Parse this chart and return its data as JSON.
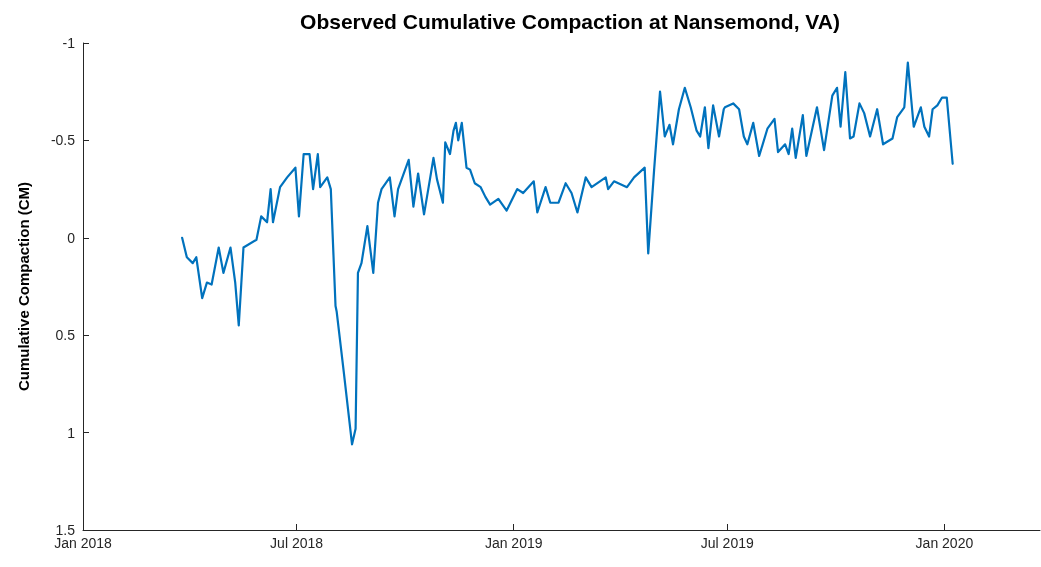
{
  "chart_data": {
    "type": "line",
    "title": "Observed Cumulative Compaction at Nansemond, VA)",
    "ylabel": "Cumulative Compaction (CM)",
    "x": [
      "2018-03-26",
      "2018-03-30",
      "2018-04-04",
      "2018-04-07",
      "2018-04-12",
      "2018-04-16",
      "2018-04-20",
      "2018-04-26",
      "2018-04-30",
      "2018-05-06",
      "2018-05-10",
      "2018-05-13",
      "2018-05-17",
      "2018-05-28",
      "2018-06-01",
      "2018-06-06",
      "2018-06-09",
      "2018-06-11",
      "2018-06-17",
      "2018-06-23",
      "2018-06-30",
      "2018-07-03",
      "2018-07-07",
      "2018-07-12",
      "2018-07-15",
      "2018-07-19",
      "2018-07-21",
      "2018-07-27",
      "2018-07-30",
      "2018-08-03",
      "2018-08-04",
      "2018-08-10",
      "2018-08-17",
      "2018-08-20",
      "2018-08-22",
      "2018-08-25",
      "2018-08-30",
      "2018-09-04",
      "2018-09-08",
      "2018-09-11",
      "2018-09-18",
      "2018-09-22",
      "2018-09-25",
      "2018-10-04",
      "2018-10-08",
      "2018-10-12",
      "2018-10-17",
      "2018-10-22",
      "2018-10-25",
      "2018-10-28",
      "2018-11-02",
      "2018-11-04",
      "2018-11-08",
      "2018-11-11",
      "2018-11-13",
      "2018-11-15",
      "2018-11-18",
      "2018-11-22",
      "2018-11-25",
      "2018-11-29",
      "2018-12-04",
      "2018-12-08",
      "2018-12-12",
      "2018-12-19",
      "2018-12-26",
      "2019-01-04",
      "2019-01-09",
      "2019-01-18",
      "2019-01-21",
      "2019-01-28",
      "2019-02-01",
      "2019-02-08",
      "2019-02-14",
      "2019-02-19",
      "2019-02-24",
      "2019-03-03",
      "2019-03-08",
      "2019-03-20",
      "2019-03-22",
      "2019-03-27",
      "2019-04-07",
      "2019-04-13",
      "2019-04-22",
      "2019-04-25",
      "2019-04-30",
      "2019-05-05",
      "2019-05-09",
      "2019-05-13",
      "2019-05-16",
      "2019-05-21",
      "2019-05-26",
      "2019-05-31",
      "2019-06-05",
      "2019-06-08",
      "2019-06-12",
      "2019-06-15",
      "2019-06-19",
      "2019-06-24",
      "2019-06-28",
      "2019-06-29",
      "2019-07-06",
      "2019-07-11",
      "2019-07-15",
      "2019-07-18",
      "2019-07-23",
      "2019-07-28",
      "2019-08-04",
      "2019-08-10",
      "2019-08-13",
      "2019-08-19",
      "2019-08-22",
      "2019-08-25",
      "2019-08-28",
      "2019-09-03",
      "2019-09-06",
      "2019-09-15",
      "2019-09-21",
      "2019-09-28",
      "2019-10-02",
      "2019-10-05",
      "2019-10-09",
      "2019-10-13",
      "2019-10-16",
      "2019-10-21",
      "2019-10-25",
      "2019-10-30",
      "2019-11-05",
      "2019-11-10",
      "2019-11-18",
      "2019-11-22",
      "2019-11-28",
      "2019-12-01",
      "2019-12-06",
      "2019-12-12",
      "2019-12-15",
      "2019-12-19",
      "2019-12-22",
      "2019-12-26",
      "2019-12-30",
      "2020-01-03",
      "2020-01-08"
    ],
    "series": [
      {
        "color": "#0072bd",
        "values": [
          0.0,
          0.1,
          0.13,
          0.1,
          0.31,
          0.23,
          0.24,
          0.05,
          0.18,
          0.05,
          0.23,
          0.45,
          0.05,
          0.01,
          -0.11,
          -0.08,
          -0.25,
          -0.08,
          -0.26,
          -0.31,
          -0.36,
          -0.11,
          -0.43,
          -0.43,
          -0.25,
          -0.43,
          -0.26,
          -0.31,
          -0.25,
          0.35,
          0.38,
          0.69,
          1.06,
          0.98,
          0.18,
          0.13,
          -0.06,
          0.18,
          -0.18,
          -0.25,
          -0.31,
          -0.11,
          -0.25,
          -0.4,
          -0.16,
          -0.33,
          -0.12,
          -0.3,
          -0.41,
          -0.3,
          -0.18,
          -0.49,
          -0.43,
          -0.55,
          -0.59,
          -0.5,
          -0.59,
          -0.36,
          -0.35,
          -0.28,
          -0.26,
          -0.21,
          -0.17,
          -0.2,
          -0.14,
          -0.25,
          -0.23,
          -0.29,
          -0.13,
          -0.26,
          -0.18,
          -0.18,
          -0.28,
          -0.23,
          -0.13,
          -0.31,
          -0.26,
          -0.31,
          -0.25,
          -0.29,
          -0.26,
          -0.31,
          -0.36,
          0.08,
          -0.35,
          -0.75,
          -0.52,
          -0.58,
          -0.48,
          -0.66,
          -0.77,
          -0.67,
          -0.55,
          -0.52,
          -0.67,
          -0.46,
          -0.68,
          -0.52,
          -0.66,
          -0.67,
          -0.69,
          -0.66,
          -0.52,
          -0.48,
          -0.59,
          -0.42,
          -0.56,
          -0.61,
          -0.44,
          -0.48,
          -0.43,
          -0.56,
          -0.41,
          -0.63,
          -0.42,
          -0.67,
          -0.45,
          -0.73,
          -0.77,
          -0.57,
          -0.85,
          -0.51,
          -0.52,
          -0.69,
          -0.64,
          -0.52,
          -0.66,
          -0.48,
          -0.51,
          -0.62,
          -0.67,
          -0.9,
          -0.57,
          -0.67,
          -0.57,
          -0.52,
          -0.66,
          -0.68,
          -0.72,
          -0.72,
          -0.38
        ]
      }
    ],
    "xlim": [
      "2018-01-01",
      "2020-03-22"
    ],
    "xticks": [
      {
        "value": "2018-01-01",
        "label": "Jan 2018"
      },
      {
        "value": "2018-07-01",
        "label": "Jul 2018"
      },
      {
        "value": "2019-01-01",
        "label": "Jan 2019"
      },
      {
        "value": "2019-07-01",
        "label": "Jul 2019"
      },
      {
        "value": "2020-01-01",
        "label": "Jan 2020"
      }
    ],
    "ylim": [
      1.5,
      -1
    ],
    "yticks": [
      -1,
      -0.5,
      0,
      0.5,
      1,
      1.5
    ],
    "marker": "none",
    "line_style": "solid"
  }
}
